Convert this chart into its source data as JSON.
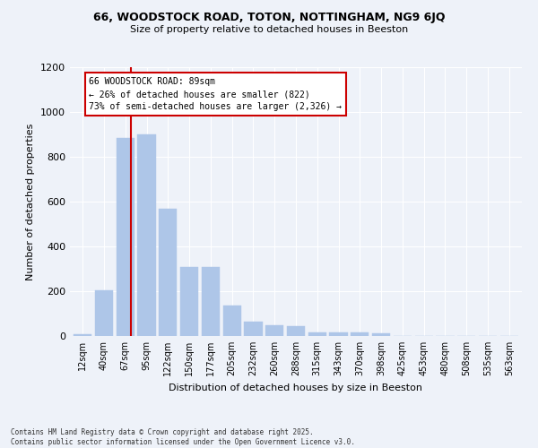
{
  "title_line1": "66, WOODSTOCK ROAD, TOTON, NOTTINGHAM, NG9 6JQ",
  "title_line2": "Size of property relative to detached houses in Beeston",
  "xlabel": "Distribution of detached houses by size in Beeston",
  "ylabel": "Number of detached properties",
  "categories": [
    "12sqm",
    "40sqm",
    "67sqm",
    "95sqm",
    "122sqm",
    "150sqm",
    "177sqm",
    "205sqm",
    "232sqm",
    "260sqm",
    "288sqm",
    "315sqm",
    "343sqm",
    "370sqm",
    "398sqm",
    "425sqm",
    "453sqm",
    "480sqm",
    "508sqm",
    "535sqm",
    "563sqm"
  ],
  "values": [
    10,
    205,
    885,
    900,
    570,
    310,
    310,
    135,
    65,
    50,
    45,
    15,
    15,
    15,
    12,
    0,
    0,
    0,
    0,
    0,
    2
  ],
  "bar_color": "#aec6e8",
  "bar_edge_color": "#aec6e8",
  "vline_color": "#cc0000",
  "annotation_text": "66 WOODSTOCK ROAD: 89sqm\n← 26% of detached houses are smaller (822)\n73% of semi-detached houses are larger (2,326) →",
  "annotation_box_color": "#ffffff",
  "annotation_box_edge": "#cc0000",
  "ylim": [
    0,
    1200
  ],
  "yticks": [
    0,
    200,
    400,
    600,
    800,
    1000,
    1200
  ],
  "background_color": "#eef2f9",
  "grid_color": "#ffffff",
  "footer": "Contains HM Land Registry data © Crown copyright and database right 2025.\nContains public sector information licensed under the Open Government Licence v3.0."
}
